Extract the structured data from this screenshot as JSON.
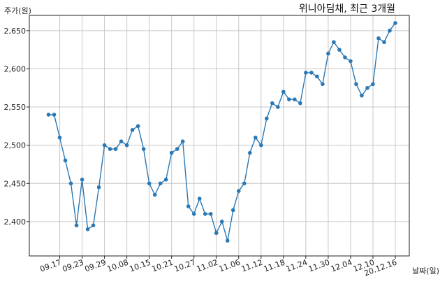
{
  "chart_data": {
    "type": "line",
    "title": "위니아딤채, 최근 3개월",
    "ylabel": "주가(원)",
    "xlabel": "날짜(일)",
    "ylim": [
      2355,
      2670
    ],
    "grid": true,
    "color": "#2a78b4",
    "yticks": [
      2400,
      2450,
      2500,
      2550,
      2600,
      2650
    ],
    "ytick_labels": [
      "2,400",
      "2,450",
      "2,500",
      "2,550",
      "2,600",
      "2,650"
    ],
    "xtick_labels": [
      "09.17",
      "09.23",
      "09.29",
      "10.08",
      "10.15",
      "10.21",
      "10.27",
      "11.02",
      "11.06",
      "11.12",
      "11.18",
      "11.24",
      "11.30",
      "12.04",
      "12.10",
      "20.12.16"
    ],
    "xtick_index": [
      2,
      6,
      10,
      14,
      18,
      22,
      26,
      30,
      34,
      38,
      42,
      46,
      50,
      54,
      58,
      62
    ],
    "values": [
      2540,
      2540,
      2510,
      2480,
      2450,
      2395,
      2455,
      2390,
      2395,
      2445,
      2500,
      2495,
      2495,
      2505,
      2500,
      2520,
      2525,
      2495,
      2450,
      2435,
      2450,
      2455,
      2490,
      2495,
      2505,
      2420,
      2410,
      2430,
      2410,
      2410,
      2385,
      2400,
      2375,
      2415,
      2440,
      2450,
      2490,
      2510,
      2500,
      2535,
      2555,
      2550,
      2570,
      2560,
      2560,
      2555,
      2595,
      2595,
      2590,
      2580,
      2620,
      2635,
      2625,
      2615,
      2610,
      2580,
      2565,
      2575,
      2580,
      2640,
      2635,
      2650,
      2660
    ]
  }
}
